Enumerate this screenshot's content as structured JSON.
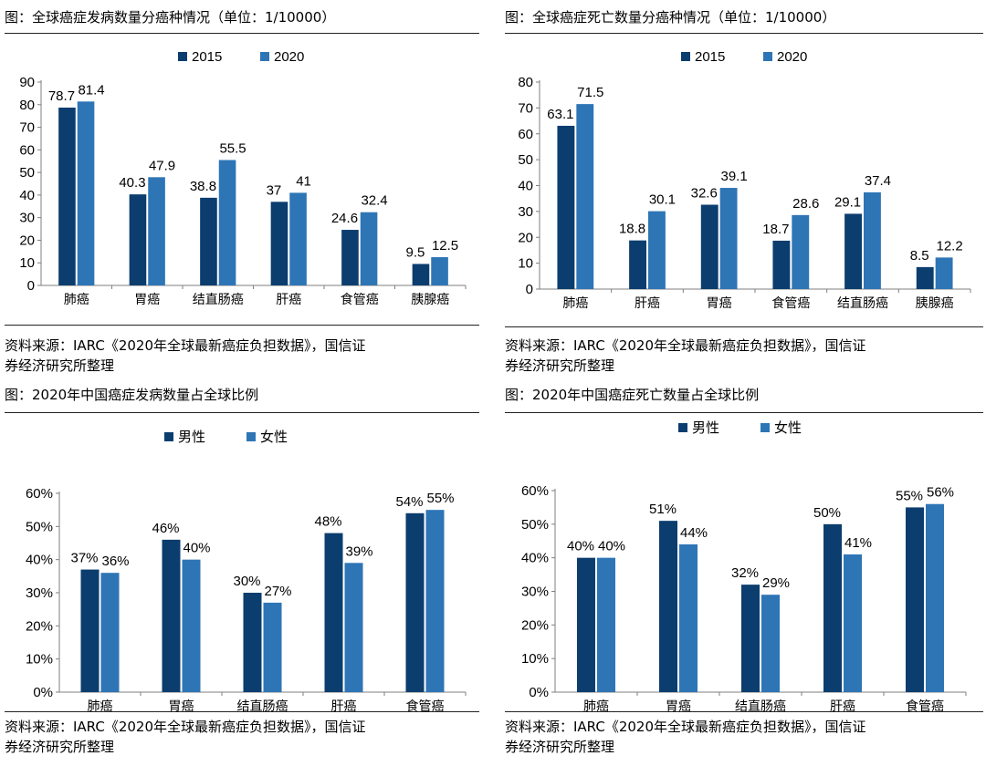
{
  "colors": {
    "series_2015_or_male": "#0b3d6e",
    "series_2020_or_female": "#2e75b6",
    "axis": "#7f7f7f"
  },
  "charts": [
    {
      "title": "图：全球癌症发病数量分癌种情况（单位：1/10000）",
      "source_line1": "资料来源：IARC《2020年全球最新癌症负担数据》，国信证",
      "source_line2": "券经济研究所整理"
    },
    {
      "title": "图：全球癌症死亡数量分癌种情况（单位：1/10000）",
      "source_line1": "资料来源：IARC《2020年全球最新癌症负担数据》，国信证",
      "source_line2": "券经济研究所整理"
    },
    {
      "title": "图：2020年中国癌症发病数量占全球比例",
      "source_line1": "资料来源：IARC《2020年全球最新癌症负担数据》，国信证",
      "source_line2": "券经济研究所整理"
    },
    {
      "title": "图：2020年中国癌症死亡数量占全球比例",
      "source_line1": "资料来源：IARC《2020年全球最新癌症负担数据》，国信证",
      "source_line2": "券经济研究所整理"
    }
  ],
  "chart_data": [
    {
      "type": "bar",
      "title": "图：全球癌症发病数量分癌种情况（单位：1/10000）",
      "categories": [
        "肺癌",
        "胃癌",
        "结直肠癌",
        "肝癌",
        "食管癌",
        "胰腺癌"
      ],
      "series": [
        {
          "name": "2015",
          "values": [
            78.7,
            40.3,
            38.8,
            37,
            24.6,
            9.5
          ]
        },
        {
          "name": "2020",
          "values": [
            81.4,
            47.9,
            55.5,
            41,
            32.4,
            12.5
          ]
        }
      ],
      "ylim": [
        0,
        90
      ],
      "yticks": [
        0,
        10,
        20,
        30,
        40,
        50,
        60,
        70,
        80,
        90
      ],
      "tick_suffix": "",
      "label_suffix": "",
      "grid": false,
      "legend": "top-center"
    },
    {
      "type": "bar",
      "title": "图：全球癌症死亡数量分癌种情况（单位：1/10000）",
      "categories": [
        "肺癌",
        "肝癌",
        "胃癌",
        "食管癌",
        "结直肠癌",
        "胰腺癌"
      ],
      "series": [
        {
          "name": "2015",
          "values": [
            63.1,
            18.8,
            32.6,
            18.7,
            29.1,
            8.5
          ]
        },
        {
          "name": "2020",
          "values": [
            71.5,
            30.1,
            39.1,
            28.6,
            37.4,
            12.2
          ]
        }
      ],
      "ylim": [
        0,
        80
      ],
      "yticks": [
        0,
        10,
        20,
        30,
        40,
        50,
        60,
        70,
        80
      ],
      "tick_suffix": "",
      "label_suffix": "",
      "grid": false,
      "legend": "top-center"
    },
    {
      "type": "bar",
      "title": "图：2020年中国癌症发病数量占全球比例",
      "categories": [
        "肺癌",
        "胃癌",
        "结直肠癌",
        "肝癌",
        "食管癌"
      ],
      "series": [
        {
          "name": "男性",
          "values": [
            37,
            46,
            30,
            48,
            54
          ]
        },
        {
          "name": "女性",
          "values": [
            36,
            40,
            27,
            39,
            55
          ]
        }
      ],
      "ylim": [
        0,
        60
      ],
      "yticks": [
        0,
        10,
        20,
        30,
        40,
        50,
        60
      ],
      "tick_suffix": "%",
      "label_suffix": "%",
      "grid": false,
      "legend": "top-center"
    },
    {
      "type": "bar",
      "title": "图：2020年中国癌症死亡数量占全球比例",
      "categories": [
        "肺癌",
        "胃癌",
        "结直肠癌",
        "肝癌",
        "食管癌"
      ],
      "series": [
        {
          "name": "男性",
          "values": [
            40,
            51,
            32,
            50,
            55
          ]
        },
        {
          "name": "女性",
          "values": [
            40,
            44,
            29,
            41,
            56
          ]
        }
      ],
      "ylim": [
        0,
        60
      ],
      "yticks": [
        0,
        10,
        20,
        30,
        40,
        50,
        60
      ],
      "tick_suffix": "%",
      "label_suffix": "%",
      "grid": false,
      "legend": "top-center"
    }
  ]
}
